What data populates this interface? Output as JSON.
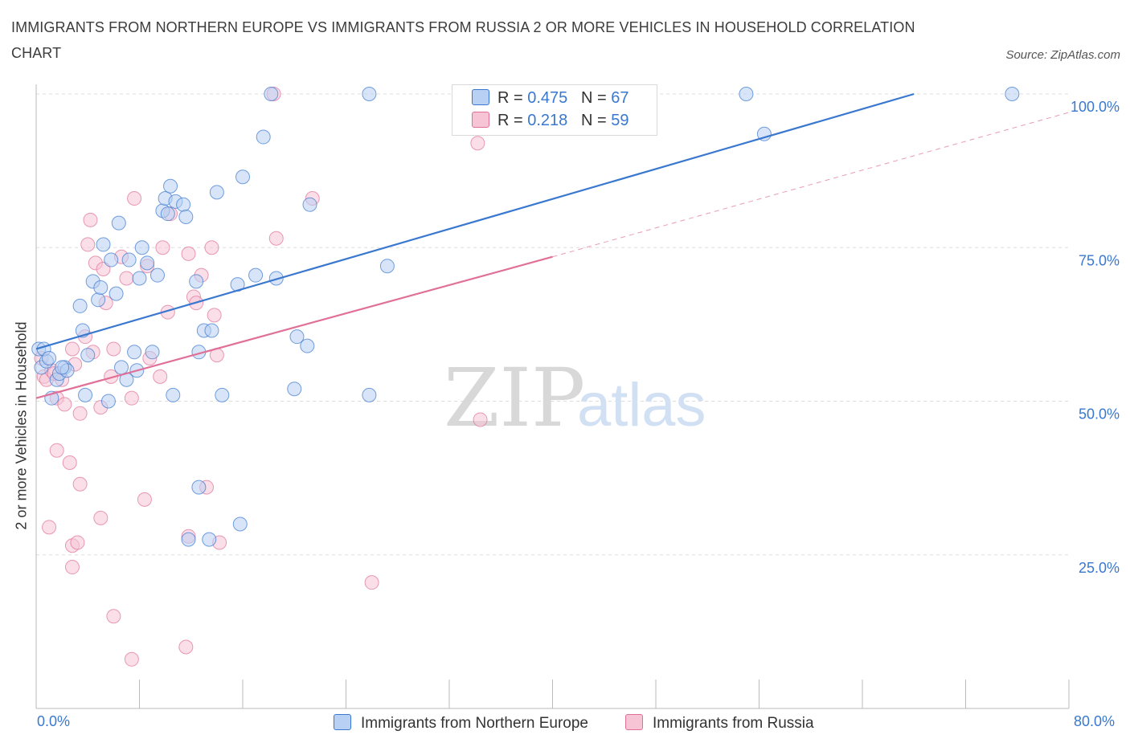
{
  "title": "IMMIGRANTS FROM NORTHERN EUROPE VS IMMIGRANTS FROM RUSSIA 2 OR MORE VEHICLES IN HOUSEHOLD CORRELATION CHART",
  "source": "Source: ZipAtlas.com",
  "watermark": {
    "zip": "ZIP",
    "atlas": "atlas"
  },
  "colors": {
    "blue": "#3a78d0",
    "blue_fill": "#b8d0f3",
    "pink": "#e07098",
    "pink_fill": "#f6c4d5",
    "grid": "#dddddd"
  },
  "legend": {
    "rows": [
      {
        "r_label": "R = ",
        "r_value": "0.475",
        "n_label": "N = ",
        "n_value": "67"
      },
      {
        "r_label": "R = ",
        "r_value": "0.218",
        "n_label": "N = ",
        "n_value": "59"
      }
    ]
  },
  "bottom_legend": [
    "Immigrants from Northern Europe",
    "Immigrants from Russia"
  ],
  "chart_data": {
    "type": "scatter",
    "title": "IMMIGRANTS FROM NORTHERN EUROPE VS IMMIGRANTS FROM RUSSIA 2 OR MORE VEHICLES IN HOUSEHOLD CORRELATION CHART",
    "xlabel": "",
    "ylabel": "2 or more Vehicles in Household",
    "xlim": [
      0,
      80
    ],
    "ylim": [
      0,
      100
    ],
    "x_tick_labels": [
      "0.0%",
      "80.0%"
    ],
    "y_tick_labels": [
      "100.0%",
      "75.0%",
      "50.0%",
      "25.0%"
    ],
    "y_ticks": [
      100,
      75,
      50,
      25
    ],
    "grid": true,
    "legend_position": "top-center",
    "series": [
      {
        "name": "Immigrants from Northern Europe",
        "color": "#3a78d0",
        "trend": {
          "x": [
            0,
            68
          ],
          "y": [
            58.5,
            100
          ]
        },
        "points": [
          [
            0.2,
            58.5
          ],
          [
            0.4,
            55.5
          ],
          [
            0.8,
            56.5
          ],
          [
            1.2,
            50.5
          ],
          [
            1.6,
            53.5
          ],
          [
            1.8,
            54.5
          ],
          [
            2.2,
            55.5
          ],
          [
            2.4,
            55
          ],
          [
            3.4,
            65.5
          ],
          [
            3.6,
            61.5
          ],
          [
            3.8,
            51
          ],
          [
            4.0,
            57.5
          ],
          [
            4.4,
            69.5
          ],
          [
            4.8,
            66.5
          ],
          [
            5.0,
            68.5
          ],
          [
            5.2,
            75.5
          ],
          [
            5.6,
            50
          ],
          [
            5.8,
            73
          ],
          [
            6.2,
            67.5
          ],
          [
            6.4,
            79
          ],
          [
            6.6,
            55.5
          ],
          [
            7.0,
            53.5
          ],
          [
            7.2,
            73
          ],
          [
            7.6,
            58
          ],
          [
            7.8,
            55
          ],
          [
            8.0,
            70
          ],
          [
            8.2,
            75
          ],
          [
            8.6,
            72.5
          ],
          [
            9.0,
            58
          ],
          [
            9.4,
            70.5
          ],
          [
            9.8,
            81
          ],
          [
            10.0,
            83
          ],
          [
            10.2,
            80.5
          ],
          [
            10.4,
            85
          ],
          [
            10.6,
            51
          ],
          [
            10.8,
            82.5
          ],
          [
            11.4,
            82
          ],
          [
            11.6,
            80
          ],
          [
            12.4,
            69.5
          ],
          [
            12.6,
            58
          ],
          [
            13.0,
            61.5
          ],
          [
            13.6,
            61.5
          ],
          [
            14.0,
            84
          ],
          [
            14.4,
            51
          ],
          [
            15.6,
            69
          ],
          [
            16.0,
            86.5
          ],
          [
            17.0,
            70.5
          ],
          [
            17.6,
            93
          ],
          [
            18.2,
            100
          ],
          [
            18.6,
            70
          ],
          [
            20.0,
            52
          ],
          [
            20.2,
            60.5
          ],
          [
            21.0,
            59
          ],
          [
            21.2,
            82
          ],
          [
            25.8,
            51
          ],
          [
            25.8,
            100
          ],
          [
            27.2,
            72
          ],
          [
            15.8,
            30
          ],
          [
            12.6,
            36
          ],
          [
            11.8,
            27.5
          ],
          [
            13.4,
            27.5
          ],
          [
            55.0,
            100
          ],
          [
            56.4,
            93.5
          ],
          [
            75.6,
            100
          ],
          [
            0.6,
            58.5
          ],
          [
            1.0,
            57
          ],
          [
            2.0,
            55.5
          ]
        ]
      },
      {
        "name": "Immigrants from Russia",
        "color": "#e07098",
        "trend": {
          "x": [
            0,
            40
          ],
          "y": [
            50.5,
            73.5
          ]
        },
        "trend_extension": {
          "x": [
            40,
            80
          ],
          "y": [
            73.5,
            97
          ]
        },
        "points": [
          [
            0.4,
            57
          ],
          [
            0.6,
            54
          ],
          [
            0.8,
            53.5
          ],
          [
            1.2,
            55
          ],
          [
            1.4,
            54.5
          ],
          [
            1.6,
            50.5
          ],
          [
            2.0,
            53.5
          ],
          [
            2.2,
            49.5
          ],
          [
            2.8,
            58.5
          ],
          [
            3.0,
            56
          ],
          [
            3.4,
            48
          ],
          [
            3.8,
            60.5
          ],
          [
            4.0,
            75.5
          ],
          [
            4.2,
            79.5
          ],
          [
            4.4,
            58
          ],
          [
            4.6,
            72.5
          ],
          [
            5.0,
            49
          ],
          [
            5.2,
            71.5
          ],
          [
            5.4,
            66
          ],
          [
            5.8,
            54
          ],
          [
            6.0,
            58.5
          ],
          [
            6.6,
            73.5
          ],
          [
            7.0,
            70
          ],
          [
            7.4,
            50.5
          ],
          [
            7.6,
            83
          ],
          [
            8.4,
            34
          ],
          [
            8.6,
            72
          ],
          [
            8.8,
            57
          ],
          [
            9.6,
            54
          ],
          [
            9.8,
            75
          ],
          [
            10.2,
            64.5
          ],
          [
            10.4,
            80.5
          ],
          [
            11.8,
            74
          ],
          [
            12.2,
            67
          ],
          [
            12.4,
            66
          ],
          [
            12.8,
            70.5
          ],
          [
            13.2,
            36
          ],
          [
            13.6,
            75
          ],
          [
            13.8,
            64
          ],
          [
            14.0,
            57.5
          ],
          [
            14.2,
            27
          ],
          [
            18.4,
            100
          ],
          [
            18.6,
            76.5
          ],
          [
            21.4,
            83
          ],
          [
            26.0,
            20.5
          ],
          [
            34.2,
            92
          ],
          [
            34.4,
            47
          ],
          [
            1.0,
            29.5
          ],
          [
            1.6,
            42
          ],
          [
            2.6,
            40
          ],
          [
            2.8,
            26.5
          ],
          [
            2.8,
            23
          ],
          [
            3.2,
            27
          ],
          [
            3.4,
            36.5
          ],
          [
            5.0,
            31
          ],
          [
            6.0,
            15
          ],
          [
            7.4,
            8
          ],
          [
            11.6,
            10
          ],
          [
            11.8,
            28
          ]
        ]
      }
    ]
  }
}
